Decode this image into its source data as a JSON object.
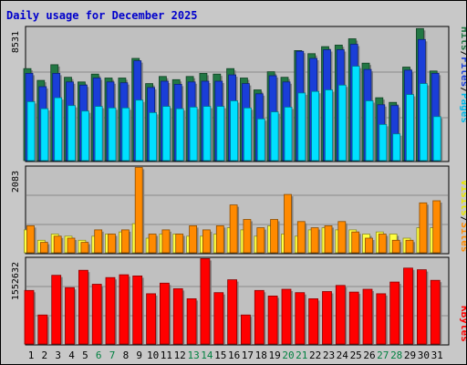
{
  "title": "Daily usage for December 2025",
  "colors": {
    "frame_bg": "#c8c8c8",
    "panel_bg": "#c0c0c0",
    "hits": "#227744",
    "files": "#1a3ed8",
    "pages": "#00e0ff",
    "visits": "#ffff40",
    "sites": "#ff8a00",
    "kbytes": "#ff0000",
    "weekend_day": "#008040",
    "weekday_day": "#000000"
  },
  "labels": {
    "hits": "Hits",
    "files": "Files",
    "pages": "Pages",
    "sites": "Sites",
    "visits": "Visits",
    "kbytes": "KBytes",
    "slash": "/"
  },
  "scale_labels": {
    "top": "8531",
    "middle": "2083",
    "bottom": "1552632"
  },
  "chart_data": [
    {
      "type": "bar",
      "panel": "hits-files-pages",
      "ylim": [
        0,
        8531
      ],
      "categories": [
        "1",
        "2",
        "3",
        "4",
        "5",
        "6",
        "7",
        "8",
        "9",
        "10",
        "11",
        "12",
        "13",
        "14",
        "15",
        "16",
        "17",
        "18",
        "19",
        "20",
        "21",
        "22",
        "23",
        "24",
        "25",
        "26",
        "27",
        "28",
        "29",
        "30",
        "31"
      ],
      "weekend_days": [
        "6",
        "7",
        "13",
        "14",
        "20",
        "21",
        "27",
        "28"
      ],
      "series": [
        {
          "name": "Hits",
          "values": [
            5850,
            5100,
            6100,
            5300,
            5000,
            5500,
            5250,
            5250,
            6500,
            4900,
            5350,
            5150,
            5350,
            5550,
            5500,
            5850,
            5250,
            4500,
            5650,
            5300,
            7000,
            6800,
            7250,
            7350,
            7750,
            6200,
            4000,
            3700,
            5950,
            8400,
            5700
          ]
        },
        {
          "name": "Files",
          "values": [
            5550,
            4700,
            5550,
            5000,
            4800,
            5250,
            5000,
            4950,
            6350,
            4650,
            5050,
            4850,
            5000,
            5050,
            5050,
            5450,
            4900,
            4250,
            5400,
            5000,
            6950,
            6500,
            7050,
            7050,
            7400,
            5800,
            3550,
            3500,
            5750,
            7700,
            5550
          ]
        },
        {
          "name": "Pages",
          "values": [
            3750,
            3300,
            4000,
            3500,
            3150,
            3450,
            3350,
            3350,
            3850,
            3050,
            3450,
            3300,
            3400,
            3450,
            3450,
            3800,
            3350,
            2650,
            3100,
            3400,
            4300,
            4400,
            4500,
            4800,
            6000,
            3800,
            2300,
            1700,
            4200,
            4900,
            2800
          ]
        }
      ]
    },
    {
      "type": "bar",
      "panel": "visits-sites",
      "ylim": [
        0,
        2083
      ],
      "categories": [
        "1",
        "2",
        "3",
        "4",
        "5",
        "6",
        "7",
        "8",
        "9",
        "10",
        "11",
        "12",
        "13",
        "14",
        "15",
        "16",
        "17",
        "18",
        "19",
        "20",
        "21",
        "22",
        "23",
        "24",
        "25",
        "26",
        "27",
        "28",
        "29",
        "30",
        "31"
      ],
      "weekend_days": [
        "6",
        "7",
        "13",
        "14",
        "20",
        "21",
        "27",
        "28"
      ],
      "series": [
        {
          "name": "Visits",
          "values": [
            550,
            300,
            450,
            400,
            300,
            400,
            450,
            500,
            700,
            350,
            450,
            450,
            400,
            400,
            450,
            600,
            550,
            400,
            650,
            450,
            400,
            550,
            600,
            550,
            550,
            450,
            500,
            450,
            350,
            600,
            600
          ]
        },
        {
          "name": "Sites",
          "values": [
            650,
            250,
            400,
            350,
            250,
            550,
            450,
            550,
            2050,
            450,
            550,
            450,
            650,
            550,
            650,
            1150,
            800,
            600,
            800,
            1400,
            750,
            600,
            650,
            750,
            500,
            350,
            450,
            300,
            300,
            1200,
            1250
          ]
        }
      ]
    },
    {
      "type": "bar",
      "panel": "kbytes",
      "ylim": [
        0,
        1552632
      ],
      "categories": [
        "1",
        "2",
        "3",
        "4",
        "5",
        "6",
        "7",
        "8",
        "9",
        "10",
        "11",
        "12",
        "13",
        "14",
        "15",
        "16",
        "17",
        "18",
        "19",
        "20",
        "21",
        "22",
        "23",
        "24",
        "25",
        "26",
        "27",
        "28",
        "29",
        "30",
        "31"
      ],
      "weekend_days": [
        "6",
        "7",
        "13",
        "14",
        "20",
        "21",
        "27",
        "28"
      ],
      "series": [
        {
          "name": "KBytes",
          "values": [
            960000,
            520000,
            1230000,
            1010000,
            1320000,
            1070000,
            1190000,
            1240000,
            1220000,
            900000,
            1090000,
            990000,
            810000,
            1530000,
            920000,
            1150000,
            520000,
            960000,
            860000,
            980000,
            920000,
            810000,
            940000,
            1050000,
            930000,
            980000,
            900000,
            1110000,
            1360000,
            1330000,
            1140000
          ]
        }
      ]
    }
  ]
}
